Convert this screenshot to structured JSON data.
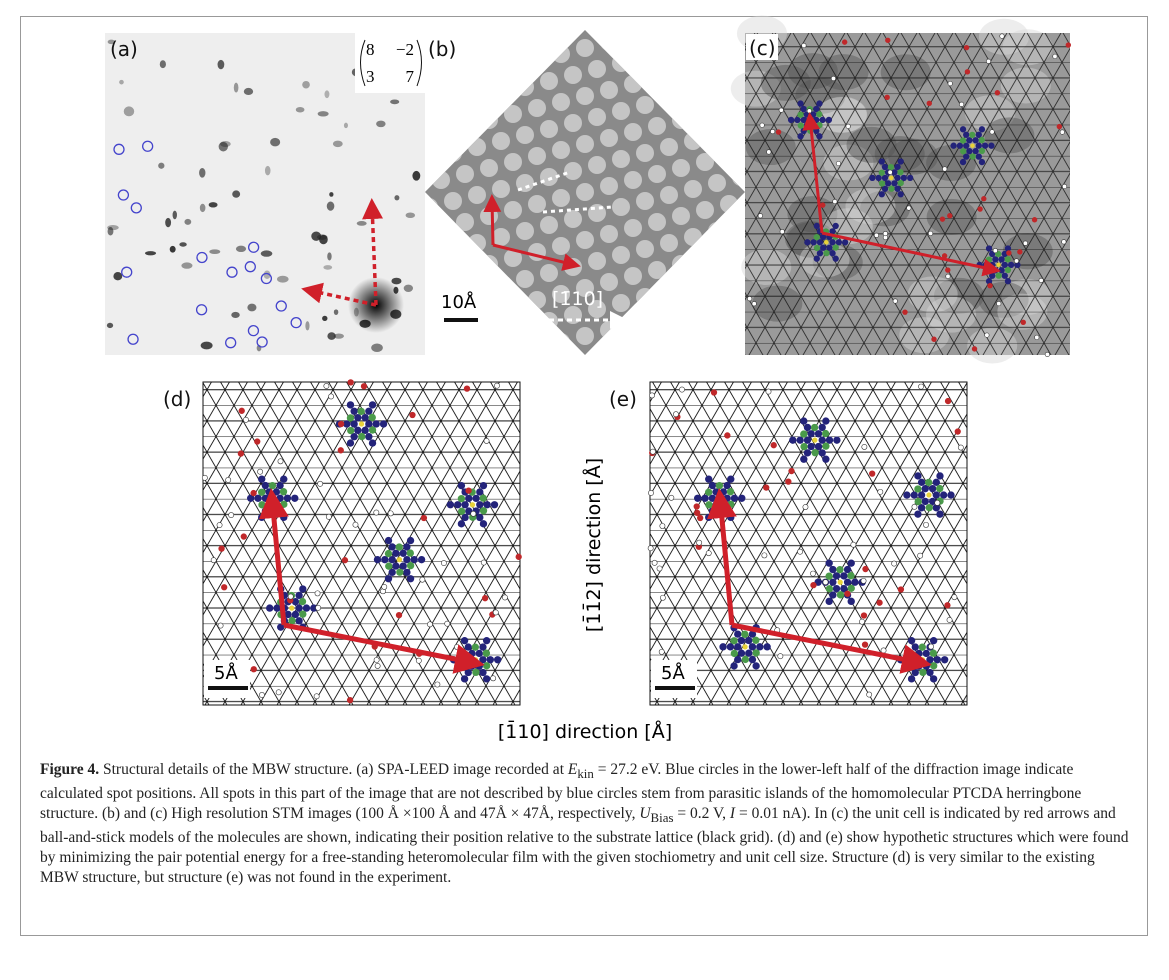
{
  "panels": {
    "a": {
      "label": "(a)",
      "matrix": [
        [
          "8",
          "−2"
        ],
        [
          "3",
          "7"
        ]
      ]
    },
    "b": {
      "label": "(b)",
      "scale_bar": "10Å",
      "direction": "[1̄10]"
    },
    "c": {
      "label": "(c)"
    },
    "d": {
      "label": "(d)",
      "scale_bar": "5Å"
    },
    "e": {
      "label": "(e)",
      "scale_bar": "5Å"
    }
  },
  "axes": {
    "y_label": "[1̄1̄2] direction [Å]",
    "x_label": "[1̄10] direction [Å]"
  },
  "caption": {
    "label": "Figure 4.",
    "parts": [
      " Structural details of the MBW structure. (a) SPA-LEED image recorded at ",
      "E",
      "kin",
      " = 27.2 eV. Blue circles in the lower-left half of the diffraction image indicate calculated spot positions. All spots in this part of the image that are not described by blue circles stem from parasitic islands of the homomolecular PTCDA herringbone structure. (b) and (c) High resolution STM images (100 Å ×100 Å and 47Å × 47Å, respectively, ",
      "U",
      "Bias",
      " = 0.2 V, ",
      "I",
      " = 0.01 nA). In (c) the unit cell is indicated by red arrows and ball-and-stick models of the molecules are shown, indicating their position relative to the substrate lattice (black grid). (d) and (e) show hypothetic structures which were found by minimizing the pair potential energy for a free-standing heteromolecular film with the given stochiometry and unit cell size. Structure (d) is very similar to the existing MBW structure, but structure (e) was not found in the experiment."
    ]
  }
}
